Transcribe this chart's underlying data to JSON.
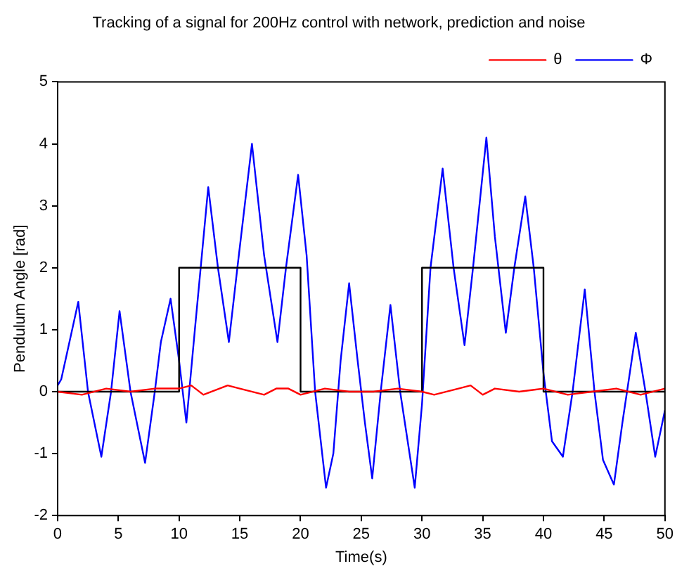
{
  "chart_data": {
    "type": "line",
    "title": "Tracking of a signal for 200Hz control with network, prediction and noise",
    "xlabel": "Time(s)",
    "ylabel": "Pendulum Angle [rad]",
    "xlim": [
      0,
      50
    ],
    "ylim": [
      -2,
      5
    ],
    "xticks": [
      0,
      5,
      10,
      15,
      20,
      25,
      30,
      35,
      40,
      45,
      50
    ],
    "yticks": [
      -2,
      -1,
      0,
      1,
      2,
      3,
      4,
      5
    ],
    "legend": "top right",
    "marker": "none",
    "line_style": "solid",
    "series": [
      {
        "name": "θ",
        "color": "#ff0000",
        "x": [
          0,
          2,
          4,
          6,
          8,
          10,
          11,
          12,
          14,
          15,
          17,
          18,
          19,
          20,
          22,
          24,
          26,
          28,
          30,
          31,
          33,
          34,
          35,
          36,
          38,
          40,
          42,
          44,
          46,
          48,
          50
        ],
        "values": [
          0,
          -0.05,
          0.05,
          0,
          0.05,
          0.05,
          0.1,
          -0.05,
          0.1,
          0.05,
          -0.05,
          0.05,
          0.05,
          -0.05,
          0.05,
          0,
          0,
          0.05,
          0,
          -0.05,
          0.05,
          0.1,
          -0.05,
          0.05,
          0,
          0.05,
          -0.05,
          0,
          0.05,
          -0.05,
          0.05
        ]
      },
      {
        "color": "#000000",
        "type": "step",
        "x": [
          0,
          10,
          20,
          30,
          40,
          50
        ],
        "values": [
          0,
          2,
          0,
          2,
          0,
          0
        ]
      },
      {
        "name": "Φ",
        "color": "#0000ff",
        "x": [
          0,
          0.3,
          1.7,
          2.5,
          3.6,
          4.4,
          5.1,
          6,
          7.2,
          8,
          8.5,
          9.3,
          10,
          10.6,
          11.3,
          12.4,
          13.2,
          14.1,
          14.8,
          16,
          17,
          18.1,
          18.8,
          19.8,
          20.5,
          21.2,
          22.1,
          22.7,
          23.3,
          24,
          24.7,
          25.3,
          25.9,
          26.6,
          27.4,
          28.2,
          29.4,
          30,
          30.7,
          31.7,
          32.6,
          33.5,
          34.2,
          35.3,
          36,
          36.9,
          37.6,
          38.5,
          39.2,
          40,
          40.7,
          41.6,
          42.4,
          43.4,
          44.2,
          44.9,
          45.8,
          46.5,
          47.6,
          48.4,
          49.2,
          50
        ],
        "values": [
          0.1,
          0.2,
          1.45,
          0,
          -1.05,
          0,
          1.3,
          0,
          -1.15,
          0,
          0.8,
          1.5,
          0.5,
          -0.5,
          1,
          3.3,
          2,
          0.8,
          2,
          4,
          2.2,
          0.8,
          2,
          3.5,
          2.2,
          0,
          -1.55,
          -1,
          0.5,
          1.75,
          0.5,
          -0.5,
          -1.4,
          0,
          1.4,
          0,
          -1.55,
          -0.2,
          2,
          3.6,
          2,
          0.75,
          2,
          4.1,
          2.5,
          0.95,
          2,
          3.15,
          2,
          0.3,
          -0.8,
          -1.05,
          0,
          1.65,
          0,
          -1.1,
          -1.5,
          -0.5,
          0.95,
          0,
          -1.05,
          -0.3
        ]
      }
    ]
  }
}
